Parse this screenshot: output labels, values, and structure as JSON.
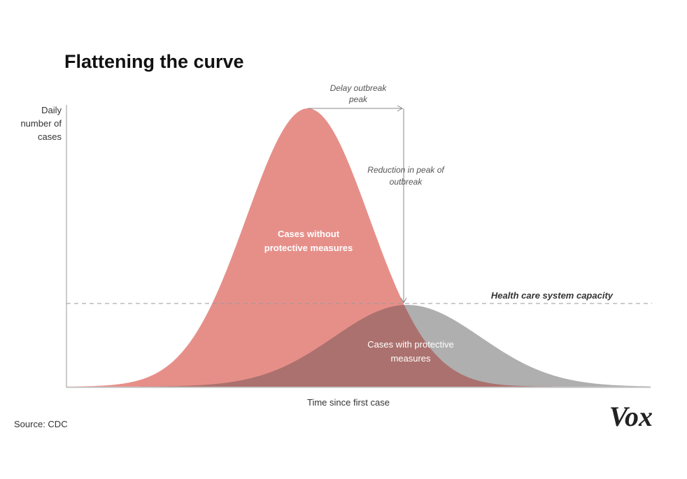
{
  "title": "Flattening the curve",
  "y_axis_label": [
    "Daily",
    "number of",
    "cases"
  ],
  "x_axis_label": "Time since first case",
  "annotations": {
    "delay": [
      "Delay outbreak",
      "peak"
    ],
    "reduction": [
      "Reduction in peak of",
      "outbreak"
    ],
    "capacity": "Health care system capacity",
    "without": [
      "Cases without",
      "protective measures"
    ],
    "with": [
      "Cases with protective",
      "measures"
    ]
  },
  "source": "Source: CDC",
  "logo": "Vox"
}
